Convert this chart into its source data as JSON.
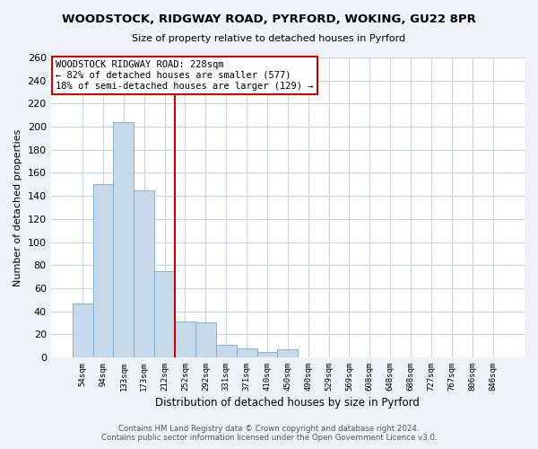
{
  "title": "WOODSTOCK, RIDGWAY ROAD, PYRFORD, WOKING, GU22 8PR",
  "subtitle": "Size of property relative to detached houses in Pyrford",
  "xlabel": "Distribution of detached houses by size in Pyrford",
  "ylabel": "Number of detached properties",
  "bar_labels": [
    "54sqm",
    "94sqm",
    "133sqm",
    "173sqm",
    "212sqm",
    "252sqm",
    "292sqm",
    "331sqm",
    "371sqm",
    "410sqm",
    "450sqm",
    "490sqm",
    "529sqm",
    "569sqm",
    "608sqm",
    "648sqm",
    "688sqm",
    "727sqm",
    "767sqm",
    "806sqm",
    "846sqm"
  ],
  "bar_values": [
    47,
    150,
    204,
    145,
    75,
    31,
    30,
    11,
    8,
    5,
    7,
    0,
    0,
    0,
    0,
    0,
    0,
    0,
    0,
    0,
    0
  ],
  "bar_color": "#c6d9ea",
  "bar_edge_color": "#8ab0cc",
  "vline_x": 4.5,
  "vline_color": "#cc0000",
  "annotation_text": "WOODSTOCK RIDGWAY ROAD: 228sqm\n← 82% of detached houses are smaller (577)\n18% of semi-detached houses are larger (129) →",
  "annotation_box_color": "#ffffff",
  "annotation_box_edge": "#cc0000",
  "ylim": [
    0,
    260
  ],
  "yticks": [
    0,
    20,
    40,
    60,
    80,
    100,
    120,
    140,
    160,
    180,
    200,
    220,
    240,
    260
  ],
  "footer_line1": "Contains HM Land Registry data © Crown copyright and database right 2024.",
  "footer_line2": "Contains public sector information licensed under the Open Government Licence v3.0.",
  "bg_color": "#eef2f6",
  "plot_bg_color": "#ffffff",
  "grid_color": "#c8d4df"
}
